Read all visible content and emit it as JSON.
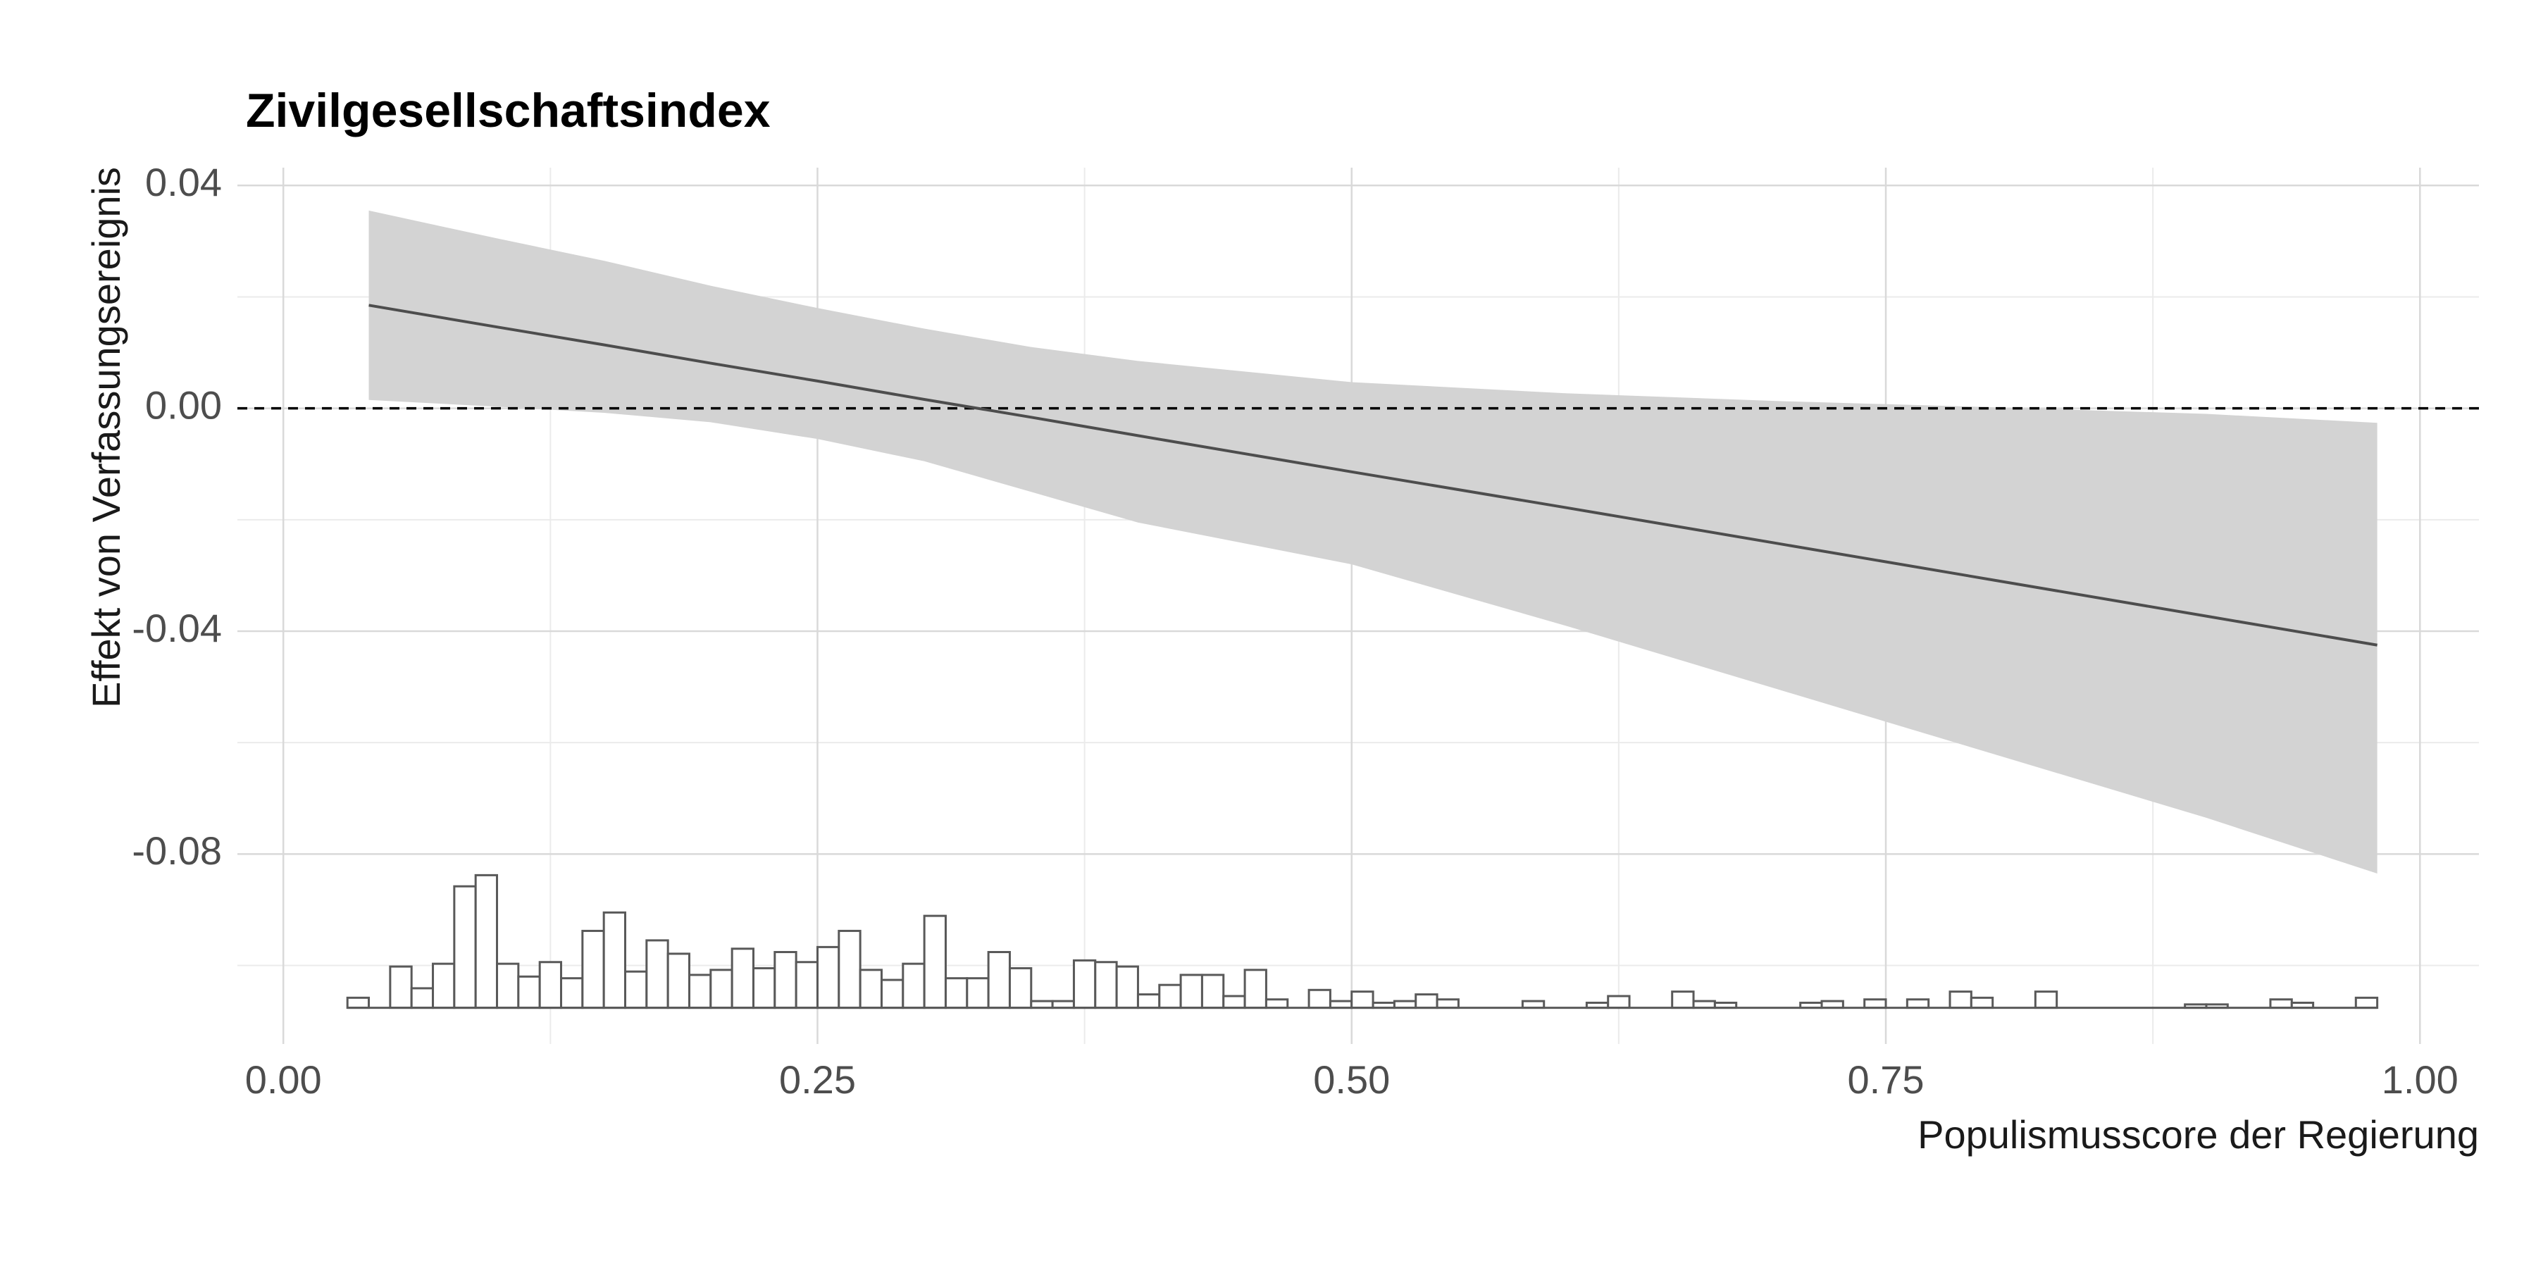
{
  "chart_data": {
    "type": "line",
    "title": "Zivilgesellschaftsindex",
    "x_label": "Populismusscore der Regierung",
    "y_label": "Effekt von Verfassungsereignis",
    "xlim": [
      -0.0215,
      1.0276
    ],
    "ylim": [
      -0.1141,
      0.0432
    ],
    "xticks": [
      {
        "value": 0,
        "label": "0.00"
      },
      0.25,
      {
        "value": 0.5,
        "label": "0.50"
      },
      0.75,
      {
        "value": 1,
        "label": "1.00"
      }
    ],
    "yticks": [
      {
        "value": 0.04,
        "label": "0.04"
      },
      {
        "value": 0,
        "label": "0.00"
      },
      {
        "value": -0.04,
        "label": "-0.04"
      },
      {
        "value": -0.08,
        "label": "-0.08"
      }
    ],
    "xminor": [
      0.125,
      0.375,
      0.625,
      0.875
    ],
    "yminor": [
      0.02,
      -0.02,
      -0.06,
      -0.1
    ],
    "grid": true,
    "hline": 0,
    "line_color": "#4d4d4d",
    "band_color": "#d3d3d3",
    "x": [
      0.04,
      0.1,
      0.15,
      0.2,
      0.25,
      0.3,
      0.35,
      0.4,
      0.5,
      0.6,
      0.7,
      0.8,
      0.9,
      0.98
    ],
    "values": [
      0.0185,
      0.0146,
      0.0114,
      0.0081,
      0.0049,
      0.0016,
      -0.0016,
      -0.0049,
      -0.0114,
      -0.0178,
      -0.0243,
      -0.0308,
      -0.0373,
      -0.0425
    ],
    "upper": [
      0.0355,
      0.0305,
      0.0265,
      0.022,
      0.018,
      0.0143,
      0.011,
      0.0085,
      0.0047,
      0.0027,
      0.0013,
      0.0002,
      -0.001,
      -0.0026
    ],
    "lower": [
      0.0015,
      0.0003,
      -0.0008,
      -0.0025,
      -0.0055,
      -0.0095,
      -0.015,
      -0.0205,
      -0.028,
      -0.039,
      -0.0505,
      -0.062,
      -0.0735,
      -0.0835
    ],
    "histogram": {
      "base": -0.1076,
      "color": "#595959",
      "bins": [
        0.03,
        0.04,
        0.05,
        0.06,
        0.07,
        0.08,
        0.09,
        0.1,
        0.11,
        0.12,
        0.13,
        0.14,
        0.15,
        0.16,
        0.17,
        0.18,
        0.19,
        0.2,
        0.21,
        0.22,
        0.23,
        0.24,
        0.25,
        0.26,
        0.27,
        0.28,
        0.29,
        0.3,
        0.31,
        0.32,
        0.33,
        0.34,
        0.35,
        0.36,
        0.37,
        0.38,
        0.39,
        0.4,
        0.41,
        0.42,
        0.43,
        0.44,
        0.45,
        0.46,
        0.47,
        0.48,
        0.49,
        0.5,
        0.51,
        0.52,
        0.53,
        0.54,
        0.55,
        0.56,
        0.57,
        0.58,
        0.59,
        0.6,
        0.61,
        0.62,
        0.63,
        0.64,
        0.65,
        0.66,
        0.67,
        0.68,
        0.69,
        0.7,
        0.71,
        0.72,
        0.73,
        0.74,
        0.75,
        0.76,
        0.77,
        0.78,
        0.79,
        0.8,
        0.81,
        0.82,
        0.83,
        0.84,
        0.85,
        0.86,
        0.87,
        0.88,
        0.89,
        0.9,
        0.91,
        0.92,
        0.93,
        0.94,
        0.95,
        0.96,
        0.97,
        0.98
      ],
      "tops": [
        -0.1058,
        -0.1076,
        -0.1002,
        -0.1041,
        -0.0997,
        -0.0858,
        -0.0838,
        -0.0997,
        -0.102,
        -0.0994,
        -0.1023,
        -0.0938,
        -0.0905,
        -0.1011,
        -0.0955,
        -0.0979,
        -0.1017,
        -0.1008,
        -0.097,
        -0.1005,
        -0.0976,
        -0.0994,
        -0.0967,
        -0.0938,
        -0.1008,
        -0.1026,
        -0.0997,
        -0.0911,
        -0.1023,
        -0.1023,
        -0.0976,
        -0.1005,
        -0.1064,
        -0.1064,
        -0.0991,
        -0.0994,
        -0.1002,
        -0.1052,
        -0.1035,
        -0.1017,
        -0.1017,
        -0.1055,
        -0.1008,
        -0.1061,
        -0.1076,
        -0.1044,
        -0.1064,
        -0.1047,
        -0.1067,
        -0.1064,
        -0.1052,
        -0.1061,
        -0.1076,
        -0.1076,
        -0.1076,
        -0.1064,
        -0.1076,
        -0.1076,
        -0.1067,
        -0.1055,
        -0.1076,
        -0.1076,
        -0.1047,
        -0.1064,
        -0.1067,
        -0.1076,
        -0.1076,
        -0.1076,
        -0.1067,
        -0.1064,
        -0.1076,
        -0.1061,
        -0.1076,
        -0.1061,
        -0.1076,
        -0.1047,
        -0.1058,
        -0.1076,
        -0.1076,
        -0.1047,
        -0.1076,
        -0.1076,
        -0.1076,
        -0.1076,
        -0.1076,
        -0.1076,
        -0.107,
        -0.107,
        -0.1076,
        -0.1076,
        -0.1061,
        -0.1067,
        -0.1076,
        -0.1076,
        -0.1058
      ]
    }
  }
}
